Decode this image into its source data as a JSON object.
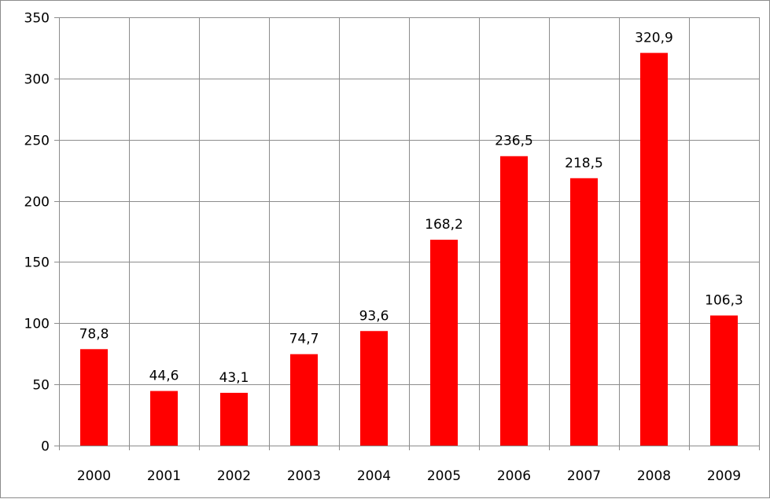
{
  "chart_data": {
    "type": "bar",
    "categories": [
      "2000",
      "2001",
      "2002",
      "2003",
      "2004",
      "2005",
      "2006",
      "2007",
      "2008",
      "2009"
    ],
    "values": [
      78.8,
      44.6,
      43.1,
      74.7,
      93.6,
      168.2,
      236.5,
      218.5,
      320.9,
      106.3
    ],
    "value_labels": [
      "78,8",
      "44,6",
      "43,1",
      "74,7",
      "93,6",
      "168,2",
      "236,5",
      "218,5",
      "320,9",
      "106,3"
    ],
    "ylim": [
      0,
      350
    ],
    "yticks": [
      0,
      50,
      100,
      150,
      200,
      250,
      300,
      350
    ],
    "grid": true,
    "legend": "none",
    "bar_color": "#ff0000",
    "grid_color": "#8c8c8c"
  }
}
